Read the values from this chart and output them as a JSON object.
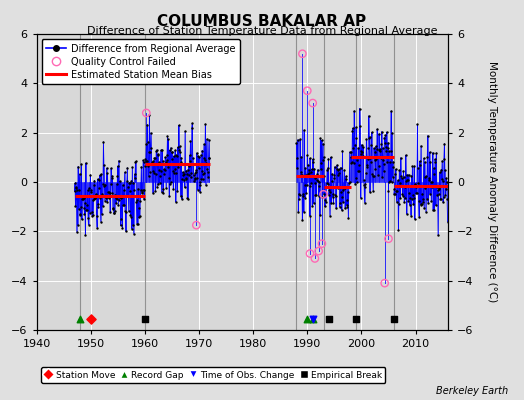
{
  "title": "COLUMBUS BAKALAR AP",
  "subtitle": "Difference of Station Temperature Data from Regional Average",
  "ylabel": "Monthly Temperature Anomaly Difference (°C)",
  "credit": "Berkeley Earth",
  "xlim": [
    1940,
    2016
  ],
  "ylim": [
    -6,
    6
  ],
  "yticks": [
    -6,
    -4,
    -2,
    0,
    2,
    4,
    6
  ],
  "xticks": [
    1940,
    1950,
    1960,
    1970,
    1980,
    1990,
    2000,
    2010
  ],
  "fig_bg": "#e0e0e0",
  "plot_bg": "#d8d8d8",
  "grid_color": "#b0b0b0",
  "line_color": "#0000ff",
  "bias_color": "#ff0000",
  "marker_color": "#000000",
  "qc_color": "#ff69b4",
  "vert_line_color": "#888888",
  "bias_segments": [
    {
      "start": 1947,
      "end": 1960,
      "bias": -0.55
    },
    {
      "start": 1960,
      "end": 1972,
      "bias": 0.75
    },
    {
      "start": 1988,
      "end": 1993,
      "bias": 0.25
    },
    {
      "start": 1993,
      "end": 1998,
      "bias": -0.2
    },
    {
      "start": 1998,
      "end": 2006,
      "bias": 1.0
    },
    {
      "start": 2006,
      "end": 2016,
      "bias": -0.15
    }
  ],
  "vert_lines": [
    1948,
    1960,
    1988,
    1993,
    1999,
    2006
  ],
  "station_moves": [
    1950
  ],
  "record_gaps": [
    1948,
    1990,
    1991
  ],
  "obs_changes": [
    1991
  ],
  "empirical_breaks": [
    1960,
    1994,
    1999,
    2006
  ],
  "gap_start": 1972,
  "gap_end": 1988,
  "seed": 77
}
